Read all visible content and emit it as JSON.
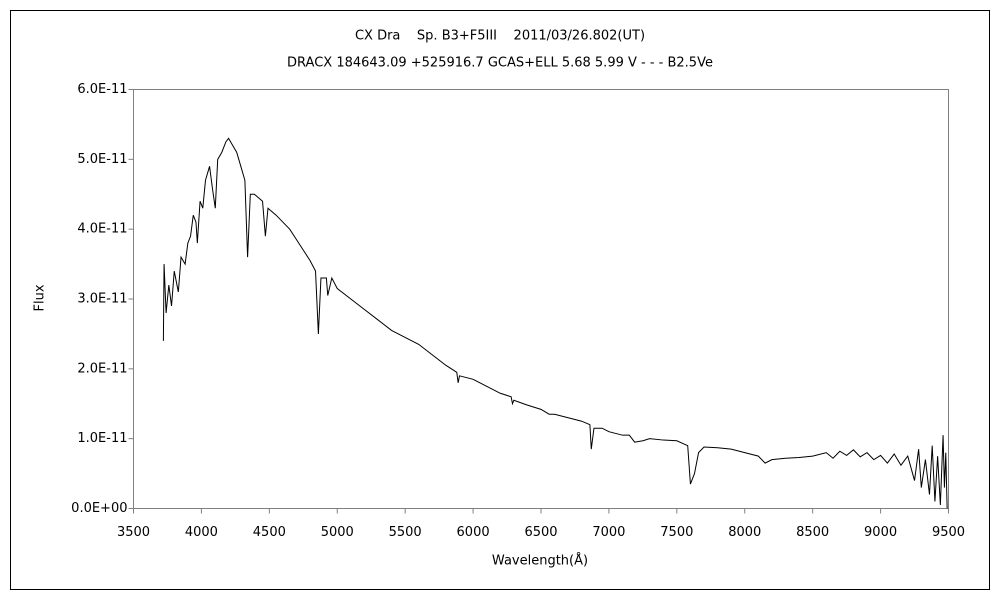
{
  "chart_data": {
    "type": "line",
    "title": "CX Dra    Sp. B3+F5III    2011/03/26.802(UT)",
    "subtitle": "DRACX 184643.09 +525916.7 GCAS+ELL 5.68 5.99 V - - - B2.5Ve",
    "x_label": "Wavelength(Å)",
    "y_label": "Flux",
    "xlim": [
      3500,
      9500
    ],
    "xticks": [
      3500,
      4000,
      4500,
      5000,
      5500,
      6000,
      6500,
      7000,
      7500,
      8000,
      8500,
      9000,
      9500
    ],
    "ylim": [
      0,
      6e-11
    ],
    "yticks": [
      {
        "value": 0,
        "label": "0.0E+00"
      },
      {
        "value": 1e-11,
        "label": "1.0E-11"
      },
      {
        "value": 2e-11,
        "label": "2.0E-11"
      },
      {
        "value": 3e-11,
        "label": "3.0E-11"
      },
      {
        "value": 4e-11,
        "label": "4.0E-11"
      },
      {
        "value": 5e-11,
        "label": "5.0E-11"
      },
      {
        "value": 6e-11,
        "label": "6.0E-11"
      }
    ],
    "grid": false,
    "color": "#000000",
    "x": [
      3720,
      3725,
      3740,
      3760,
      3780,
      3800,
      3830,
      3850,
      3880,
      3900,
      3920,
      3940,
      3960,
      3970,
      3990,
      4010,
      4030,
      4060,
      4080,
      4102,
      4120,
      4150,
      4180,
      4200,
      4230,
      4260,
      4290,
      4320,
      4340,
      4360,
      4390,
      4420,
      4450,
      4471,
      4490,
      4550,
      4600,
      4650,
      4700,
      4750,
      4800,
      4840,
      4861,
      4880,
      4920,
      4930,
      4960,
      5000,
      5100,
      5200,
      5300,
      5400,
      5500,
      5600,
      5700,
      5800,
      5880,
      5890,
      5900,
      6000,
      6100,
      6200,
      6280,
      6290,
      6300,
      6400,
      6500,
      6560,
      6600,
      6700,
      6800,
      6860,
      6870,
      6890,
      6950,
      7000,
      7100,
      7150,
      7190,
      7250,
      7300,
      7400,
      7500,
      7580,
      7600,
      7630,
      7660,
      7700,
      7800,
      7900,
      8000,
      8100,
      8150,
      8200,
      8300,
      8400,
      8500,
      8600,
      8650,
      8700,
      8750,
      8800,
      8850,
      8900,
      8950,
      9000,
      9050,
      9100,
      9150,
      9200,
      9250,
      9280,
      9300,
      9330,
      9360,
      9380,
      9400,
      9420,
      9440,
      9460,
      9470,
      9480,
      9490
    ],
    "values": [
      2.4e-11,
      3.5e-11,
      2.8e-11,
      3.2e-11,
      2.9e-11,
      3.4e-11,
      3.1e-11,
      3.6e-11,
      3.5e-11,
      3.8e-11,
      3.9e-11,
      4.2e-11,
      4.1e-11,
      3.8e-11,
      4.4e-11,
      4.3e-11,
      4.7e-11,
      4.9e-11,
      4.6e-11,
      4.3e-11,
      5e-11,
      5.1e-11,
      5.25e-11,
      5.3e-11,
      5.2e-11,
      5.1e-11,
      4.9e-11,
      4.7e-11,
      3.6e-11,
      4.5e-11,
      4.5e-11,
      4.45e-11,
      4.4e-11,
      3.9e-11,
      4.3e-11,
      4.2e-11,
      4.1e-11,
      4e-11,
      3.85e-11,
      3.7e-11,
      3.55e-11,
      3.4e-11,
      2.5e-11,
      3.3e-11,
      3.3e-11,
      3.05e-11,
      3.3e-11,
      3.15e-11,
      3e-11,
      2.85e-11,
      2.7e-11,
      2.55e-11,
      2.45e-11,
      2.35e-11,
      2.2e-11,
      2.05e-11,
      1.95e-11,
      1.8e-11,
      1.9e-11,
      1.85e-11,
      1.75e-11,
      1.65e-11,
      1.6e-11,
      1.5e-11,
      1.55e-11,
      1.48e-11,
      1.42e-11,
      1.35e-11,
      1.35e-11,
      1.3e-11,
      1.25e-11,
      1.2e-11,
      8.5e-12,
      1.15e-11,
      1.15e-11,
      1.1e-11,
      1.05e-11,
      1.05e-11,
      9.5e-12,
      9.7e-12,
      1e-11,
      9.8e-12,
      9.7e-12,
      9e-12,
      3.5e-12,
      5e-12,
      8e-12,
      8.8e-12,
      8.7e-12,
      8.5e-12,
      8e-12,
      7.5e-12,
      6.5e-12,
      7e-12,
      7.2e-12,
      7.3e-12,
      7.5e-12,
      8e-12,
      7.2e-12,
      8.2e-12,
      7.6e-12,
      8.4e-12,
      7.4e-12,
      8e-12,
      7e-12,
      7.6e-12,
      6.5e-12,
      7.8e-12,
      6.2e-12,
      7.5e-12,
      4e-12,
      8.5e-12,
      3e-12,
      7e-12,
      2e-12,
      9e-12,
      1e-12,
      7.5e-12,
      5e-13,
      1.05e-11,
      3e-12,
      8e-12,
      0
    ]
  }
}
